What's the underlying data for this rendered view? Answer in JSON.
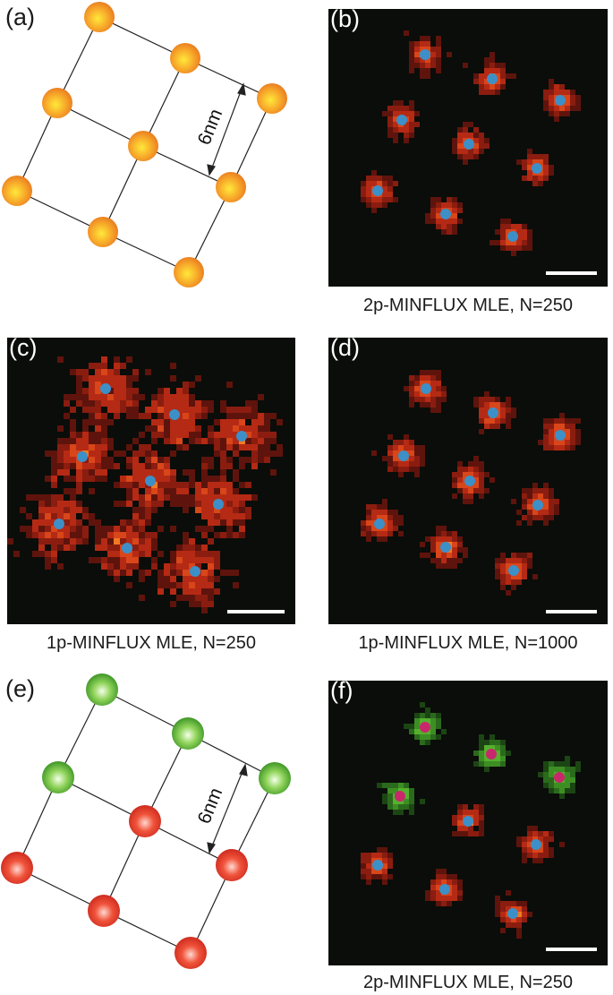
{
  "panels": {
    "a": {
      "label": "(a)",
      "spacing_label": "6nm"
    },
    "b": {
      "label": "(b)",
      "caption": "2p-MINFLUX MLE, N=250"
    },
    "c": {
      "label": "(c)",
      "caption": "1p-MINFLUX MLE, N=250"
    },
    "d": {
      "label": "(d)",
      "caption": "1p-MINFLUX MLE, N=1000"
    },
    "e": {
      "label": "(e)",
      "spacing_label": "6nm"
    },
    "f": {
      "label": "(f)",
      "caption": "2p-MINFLUX MLE, N=250"
    }
  },
  "colors": {
    "orange_molecule": "#f39a2c",
    "green_molecule": "#4aa92a",
    "red_molecule": "#e23a24",
    "estimate_marker": "#3d8fc7",
    "estimate_marker_green_group": "#c8286b",
    "map_background": "#0a0d09"
  }
}
